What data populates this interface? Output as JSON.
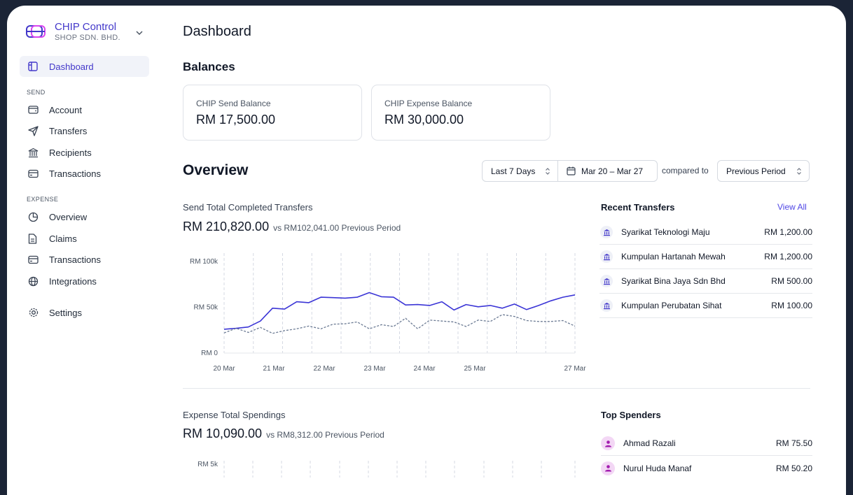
{
  "brand": {
    "name": "CHIP Control",
    "subtitle": "SHOP SDN. BHD."
  },
  "sidebar": {
    "dashboard": "Dashboard",
    "send_section": "SEND",
    "send_items": [
      "Account",
      "Transfers",
      "Recipients",
      "Transactions"
    ],
    "expense_section": "EXPENSE",
    "expense_items": [
      "Overview",
      "Claims",
      "Transactions",
      "Integrations"
    ],
    "settings": "Settings"
  },
  "page": {
    "title": "Dashboard"
  },
  "balances": {
    "title": "Balances",
    "cards": [
      {
        "label": "CHIP Send Balance",
        "value": "RM 17,500.00"
      },
      {
        "label": "CHIP Expense Balance",
        "value": "RM 30,000.00"
      }
    ]
  },
  "overview": {
    "title": "Overview",
    "range": "Last 7 Days",
    "dates": "Mar 20 – Mar 27",
    "compared_to_label": "compared to",
    "compare": "Previous Period"
  },
  "send": {
    "title": "Send Total Completed Transfers",
    "total": "RM 210,820.00",
    "vs": "vs RM102,041.00 Previous Period"
  },
  "chart_data": {
    "type": "line",
    "x_ticks": [
      "20 Mar",
      "21 Mar",
      "22 Mar",
      "23 Mar",
      "24 Mar",
      "25 Mar",
      "27 Mar"
    ],
    "y_ticks": [
      "RM 100k",
      "RM 50k",
      "RM 0"
    ],
    "ylim": [
      0,
      100000
    ],
    "grid": "vertical dashed",
    "series": [
      {
        "color": "#3b35d6",
        "style": "solid",
        "values": [
          26000,
          27000,
          28500,
          35000,
          49000,
          48000,
          56000,
          55000,
          61000,
          60500,
          60000,
          61000,
          66000,
          61500,
          61000,
          52500,
          53000,
          52000,
          56000,
          47000,
          53000,
          50500,
          52000,
          49000,
          53500,
          47500,
          52000,
          57000,
          61000,
          63500
        ]
      },
      {
        "color": "#6b7a93",
        "style": "dashed",
        "values": [
          22000,
          27000,
          22500,
          28000,
          21500,
          24500,
          26500,
          29500,
          26500,
          31500,
          32000,
          34000,
          26500,
          31000,
          29000,
          38000,
          26500,
          36000,
          35000,
          34000,
          29000,
          36000,
          34500,
          42000,
          40000,
          35500,
          34500,
          34500,
          35500,
          29500
        ]
      }
    ]
  },
  "recent_transfers": {
    "title": "Recent Transfers",
    "view_all": "View All",
    "items": [
      {
        "name": "Syarikat Teknologi Maju",
        "amount": "RM 1,200.00"
      },
      {
        "name": "Kumpulan Hartanah Mewah",
        "amount": "RM 1,200.00"
      },
      {
        "name": "Syarikat Bina Jaya Sdn Bhd",
        "amount": "RM 500.00"
      },
      {
        "name": "Kumpulan Perubatan Sihat",
        "amount": "RM 100.00"
      }
    ]
  },
  "expense": {
    "title": "Expense Total Spendings",
    "total": "RM 10,090.00",
    "vs": "vs RM8,312.00 Previous Period",
    "y_top": "RM 5k"
  },
  "top_spenders": {
    "title": "Top Spenders",
    "items": [
      {
        "name": "Ahmad Razali",
        "amount": "RM 75.50"
      },
      {
        "name": "Nurul Huda Manaf",
        "amount": "RM 50.20"
      }
    ]
  }
}
